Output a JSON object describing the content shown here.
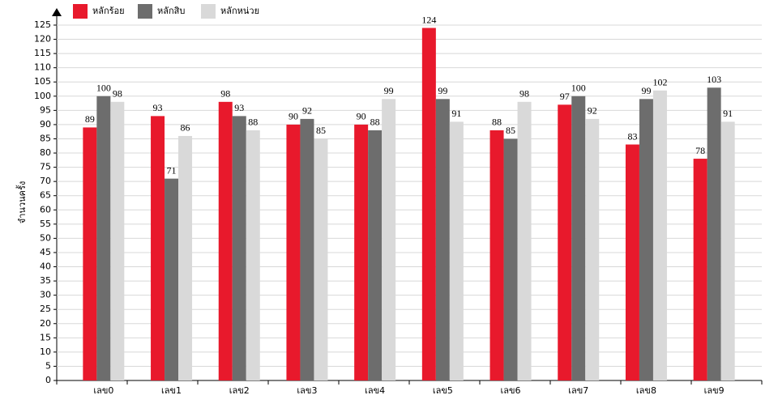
{
  "chart_data": {
    "type": "bar",
    "y_label": "จำนวนครั้ง",
    "categories": [
      "เลข0",
      "เลข1",
      "เลข2",
      "เลข3",
      "เลข4",
      "เลข5",
      "เลข6",
      "เลข7",
      "เลข8",
      "เลข9"
    ],
    "series": [
      {
        "name": "หลักร้อย",
        "color": "#e8192c",
        "values": [
          89,
          93,
          98,
          90,
          90,
          124,
          88,
          97,
          83,
          78
        ]
      },
      {
        "name": "หลักสิบ",
        "color": "#6d6d6d",
        "values": [
          100,
          71,
          93,
          92,
          88,
          99,
          85,
          100,
          99,
          103
        ]
      },
      {
        "name": "หลักหน่วย",
        "color": "#d9d9d9",
        "values": [
          98,
          86,
          88,
          85,
          99,
          91,
          98,
          92,
          102,
          91
        ]
      }
    ],
    "ylim": [
      0,
      125
    ],
    "yticks": [
      0,
      5,
      10,
      15,
      20,
      25,
      30,
      35,
      40,
      45,
      50,
      55,
      60,
      65,
      70,
      75,
      80,
      85,
      90,
      95,
      100,
      105,
      110,
      115,
      120,
      125
    ],
    "grid": true
  }
}
